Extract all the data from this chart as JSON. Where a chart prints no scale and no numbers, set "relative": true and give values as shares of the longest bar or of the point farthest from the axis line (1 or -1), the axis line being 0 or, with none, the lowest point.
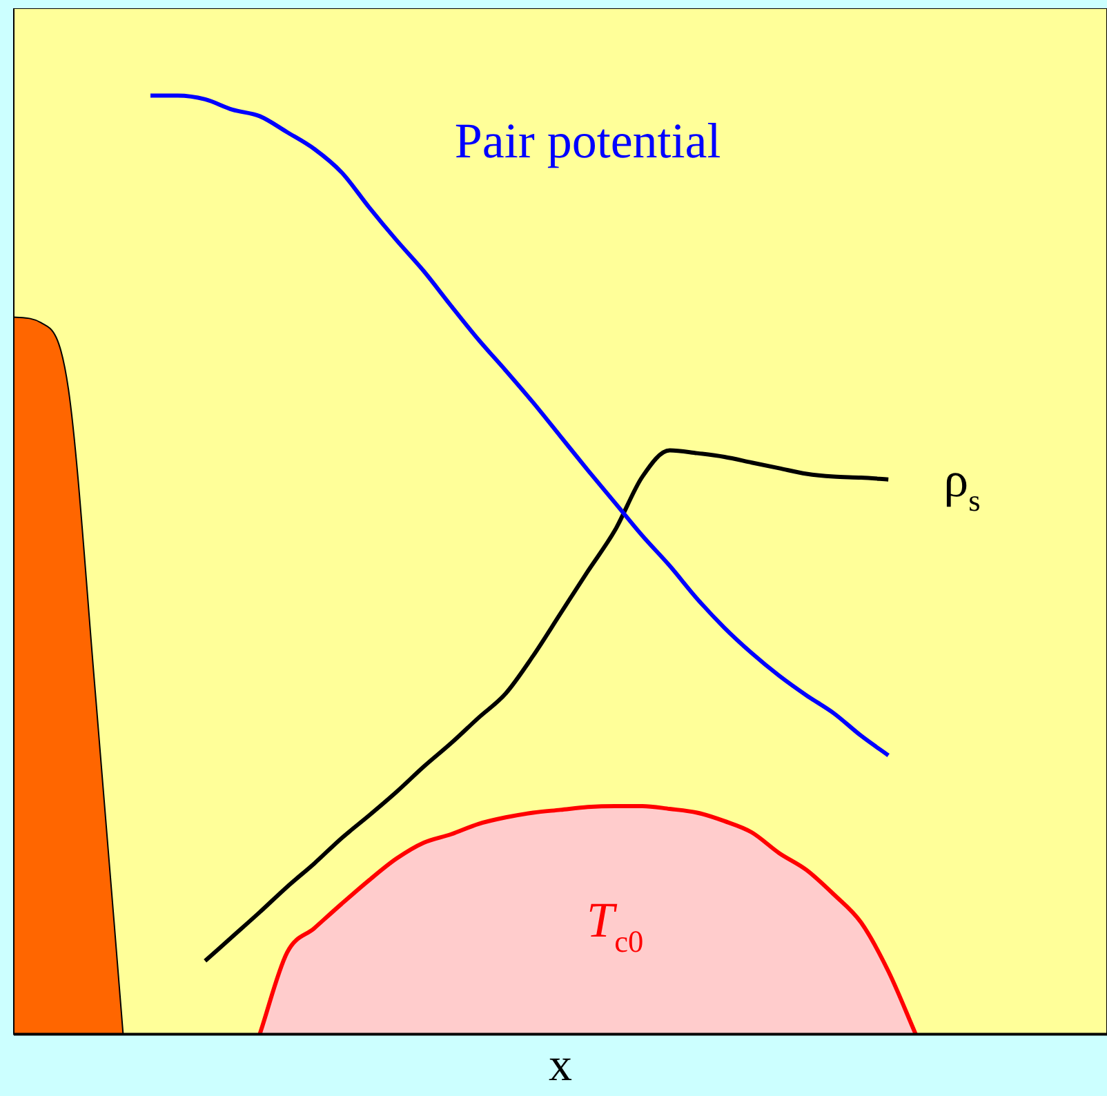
{
  "chart_data": {
    "type": "line",
    "relative": true,
    "xlabel": "x",
    "tick_labels": false,
    "grid": false,
    "legend": false,
    "marker": "none",
    "line_style": "solid",
    "categories": [
      null,
      null,
      null,
      null,
      null,
      null,
      null,
      null,
      null,
      null,
      null,
      null,
      null,
      null,
      null,
      null,
      null,
      null,
      null,
      null,
      null,
      null,
      null,
      null,
      null,
      null,
      null,
      null,
      null,
      null,
      null,
      null,
      null,
      null,
      null,
      null,
      null,
      null,
      null,
      null,
      null
    ],
    "series": [
      {
        "type": "area",
        "color": "#ff6600",
        "values": [
          0.764,
          0.758,
          0.687,
          0.358,
          0,
          null,
          null,
          null,
          null,
          null,
          null,
          null,
          null,
          null,
          null,
          null,
          null,
          null,
          null,
          null,
          null,
          null,
          null,
          null,
          null,
          null,
          null,
          null,
          null,
          null,
          null,
          null,
          null,
          null,
          null,
          null,
          null,
          null,
          null,
          null,
          null
        ]
      },
      {
        "type": "area",
        "name": "T$_{c0}$",
        "color": "#ff0000",
        "values": [
          null,
          null,
          null,
          null,
          null,
          null,
          null,
          null,
          null,
          0,
          0.087,
          0.113,
          0.139,
          0.164,
          0.187,
          0.204,
          0.213,
          0.224,
          0.231,
          0.236,
          0.239,
          0.242,
          0.243,
          0.243,
          0.24,
          0.236,
          0.227,
          0.215,
          0.193,
          0.175,
          0.149,
          0.119,
          0.067,
          0,
          null,
          null,
          null,
          null,
          null,
          null,
          null
        ]
      },
      {
        "name": "Pair potential",
        "color": "#0000ff",
        "values": [
          null,
          null,
          null,
          null,
          null,
          1,
          1,
          0.996,
          0.985,
          0.978,
          0.961,
          0.943,
          0.918,
          0.881,
          0.846,
          0.813,
          0.776,
          0.74,
          0.707,
          0.673,
          0.637,
          0.601,
          0.566,
          0.531,
          0.499,
          0.464,
          0.433,
          0.406,
          0.382,
          0.361,
          0.342,
          0.318,
          0.297,
          null,
          null,
          null,
          null,
          null,
          null,
          null,
          null
        ]
      },
      {
        "name": "ρ$_{s}$",
        "color": "#000000",
        "values": [
          null,
          null,
          null,
          null,
          null,
          null,
          null,
          0.078,
          0.104,
          0.13,
          0.157,
          0.182,
          0.209,
          0.233,
          0.258,
          0.285,
          0.31,
          0.337,
          0.363,
          0.403,
          0.448,
          0.493,
          0.537,
          0.594,
          0.622,
          0.619,
          0.615,
          0.609,
          0.603,
          0.597,
          0.594,
          0.593,
          0.591,
          null,
          null,
          null,
          null,
          null,
          null,
          null,
          null
        ]
      }
    ]
  }
}
